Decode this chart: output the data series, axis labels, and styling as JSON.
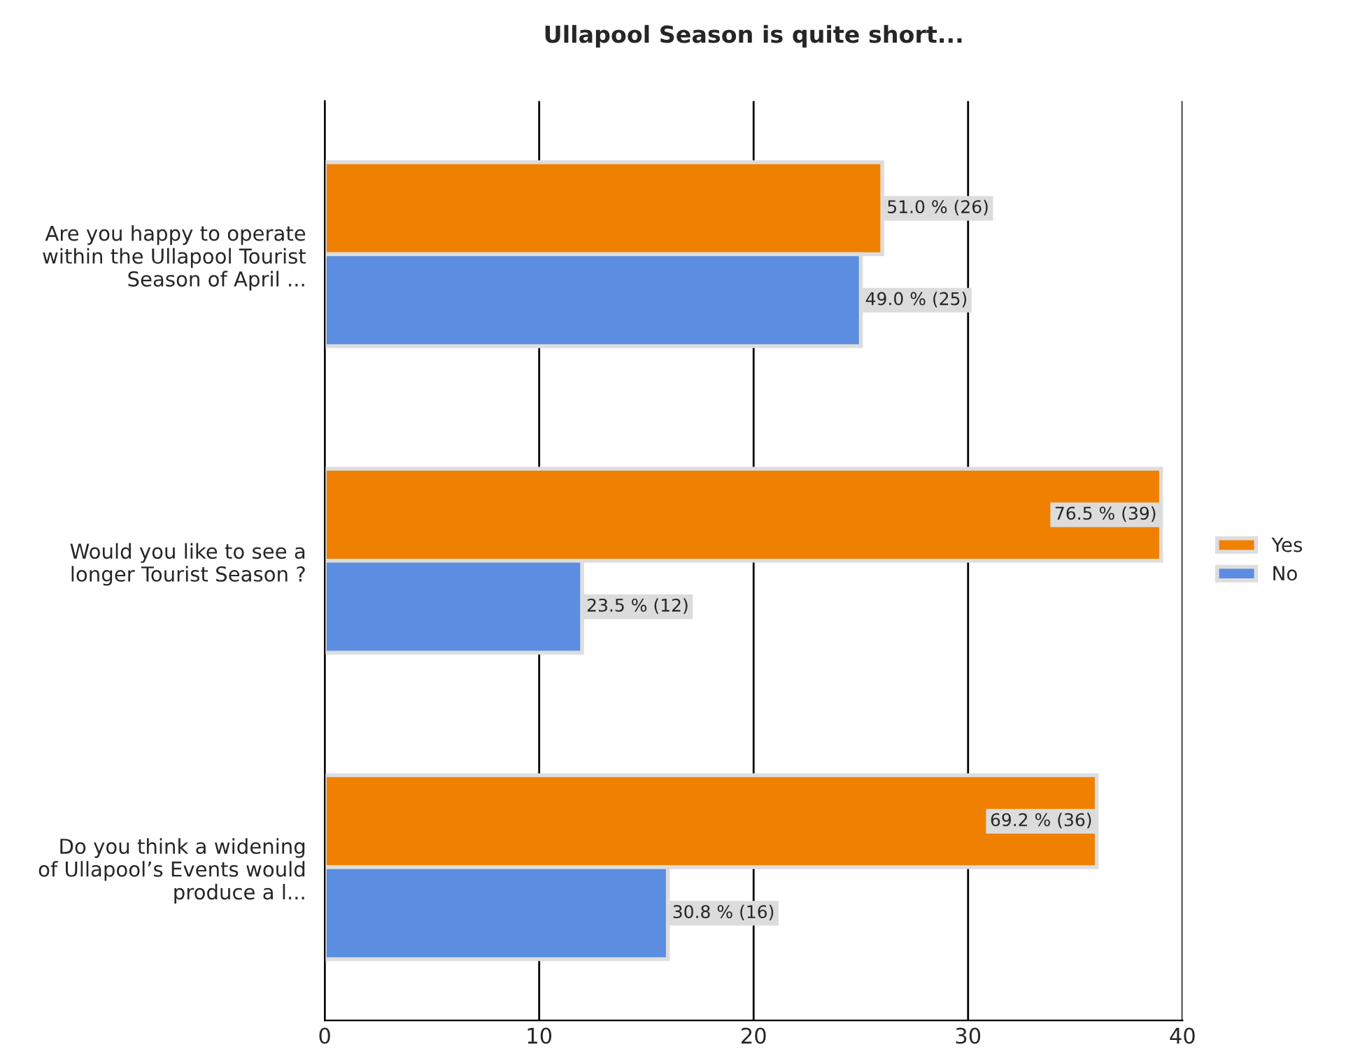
{
  "chart_data": {
    "type": "bar",
    "orientation": "horizontal",
    "title": "Ullapool Season is quite short...",
    "categories": [
      "Are you happy to operate\nwithin the Ullapool Tourist\nSeason of April ...",
      "Would you like to see a\nlonger Tourist Season ?",
      "Do you think a widening\nof Ullapool’s Events would\nproduce a l..."
    ],
    "series": [
      {
        "name": "Yes",
        "color": "#f08000",
        "values": [
          26,
          39,
          36
        ],
        "value_labels": [
          "51.0 % (26)",
          "76.5 % (39)",
          "69.2 % (36)"
        ]
      },
      {
        "name": "No",
        "color": "#5b8de0",
        "values": [
          25,
          12,
          16
        ],
        "value_labels": [
          "49.0 % (25)",
          "23.5 % (12)",
          "30.8 % (16)"
        ]
      }
    ],
    "xlim": [
      0,
      40
    ],
    "xticks": [
      0,
      10,
      20,
      30,
      40
    ],
    "grid": "x",
    "legend": "right"
  }
}
